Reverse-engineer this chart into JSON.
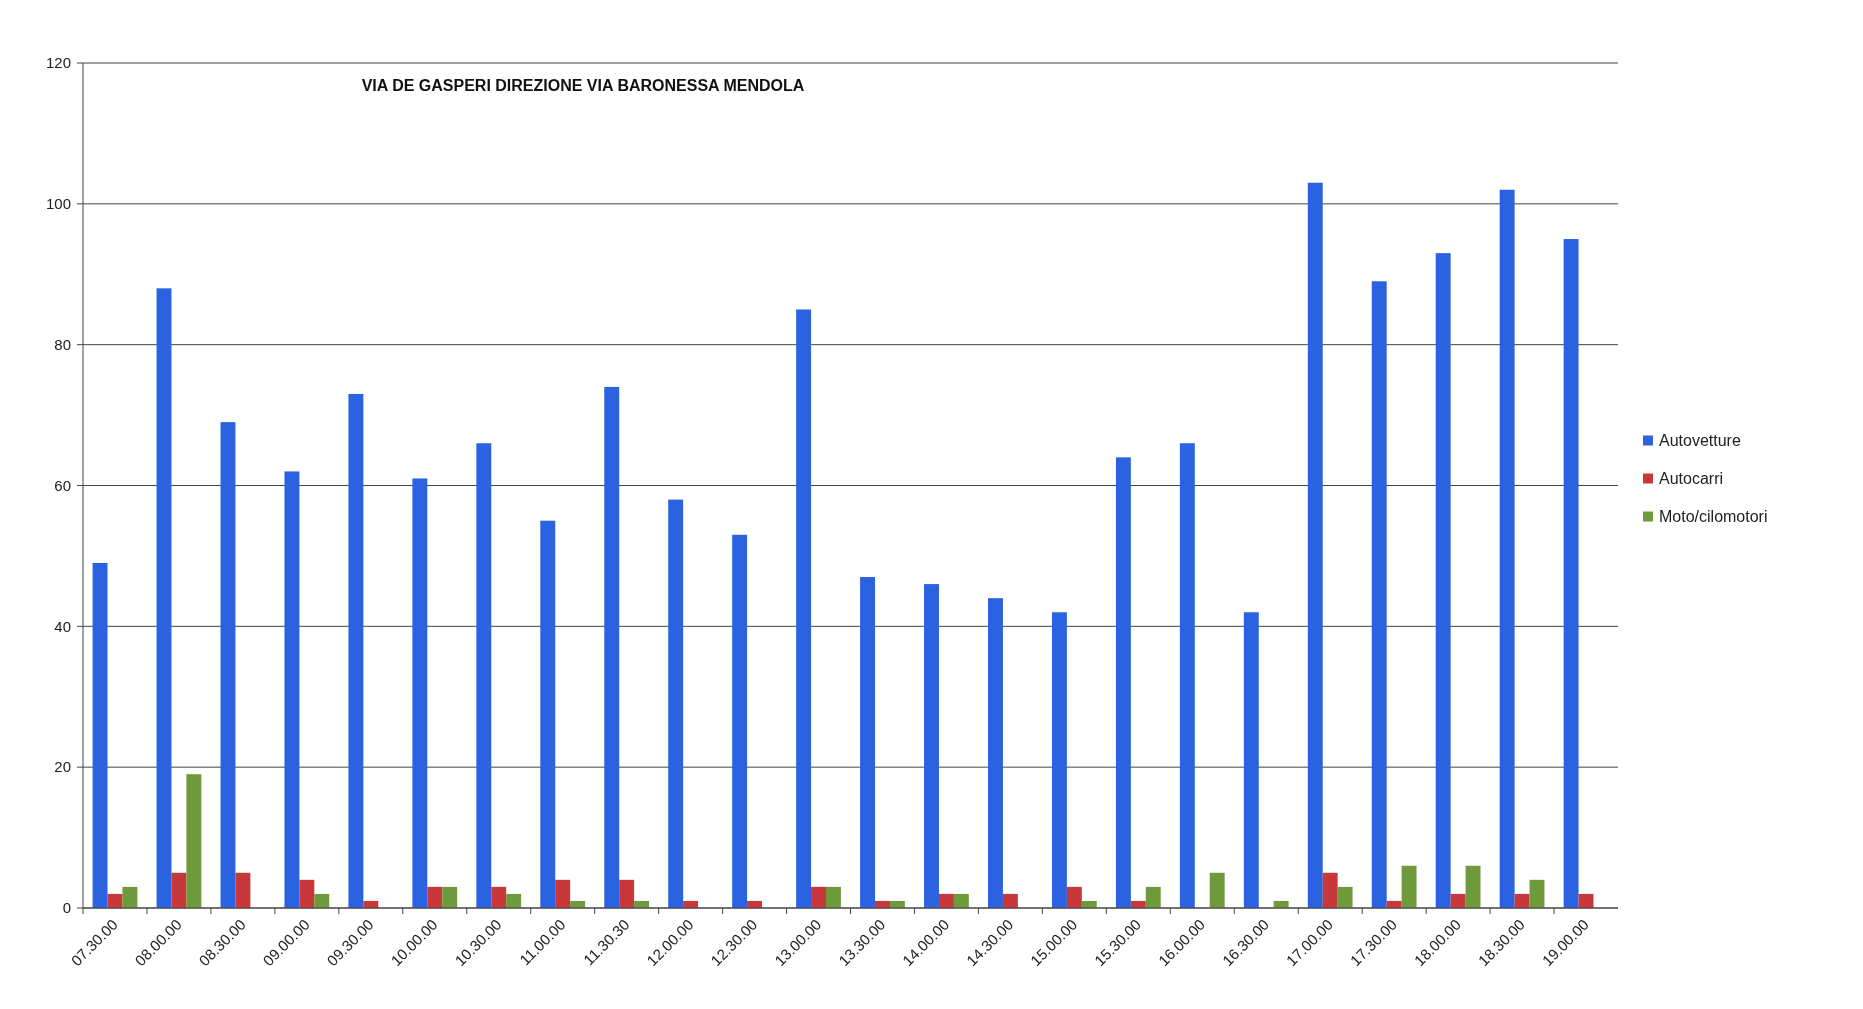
{
  "chart_data": {
    "type": "bar",
    "title": "VIA DE GASPERI DIREZIONE VIA BARONESSA MENDOLA",
    "categories": [
      "07.30.00",
      "08.00.00",
      "08.30.00",
      "09.00.00",
      "09.30.00",
      "10.00.00",
      "10.30.00",
      "11.00.00",
      "11.30.30",
      "12.00.00",
      "12.30.00",
      "13.00.00",
      "13.30.00",
      "14.00.00",
      "14.30.00",
      "15.00.00",
      "15.30.00",
      "16.00.00",
      "16.30.00",
      "17.00.00",
      "17.30.00",
      "18.00.00",
      "18.30.00",
      "19.00.00"
    ],
    "series": [
      {
        "name": "Autovetture",
        "color": "#2a62e0",
        "values": [
          49,
          88,
          69,
          62,
          73,
          61,
          66,
          55,
          74,
          58,
          53,
          85,
          47,
          46,
          44,
          42,
          64,
          66,
          42,
          103,
          89,
          93,
          102,
          95
        ]
      },
      {
        "name": "Autocarri",
        "color": "#c8383a",
        "values": [
          2,
          5,
          5,
          4,
          1,
          3,
          3,
          4,
          4,
          1,
          1,
          3,
          1,
          2,
          2,
          3,
          1,
          0,
          0,
          5,
          1,
          2,
          2,
          2
        ]
      },
      {
        "name": "Moto/cilomotori",
        "color": "#6e9a3c",
        "values": [
          3,
          19,
          0,
          2,
          0,
          3,
          2,
          1,
          1,
          0,
          0,
          3,
          1,
          2,
          0,
          1,
          3,
          5,
          1,
          3,
          6,
          6,
          4,
          0
        ]
      }
    ],
    "ylim": [
      0,
      120
    ],
    "yticks": [
      0,
      20,
      40,
      60,
      80,
      100,
      120
    ],
    "grid": "y",
    "legend": "right"
  }
}
